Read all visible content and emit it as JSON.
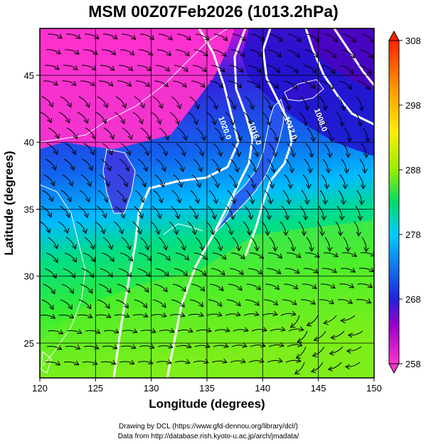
{
  "title": "MSM 00Z07Feb2026 (1013.2hPa)",
  "xlabel": "Longitude (degrees)",
  "ylabel": "Latitude  (degrees)",
  "credits": [
    "Drawing by DCL (https://www.gfd-dennou.org/library/dcl/)",
    "Data from http://database.rish.kyoto-u.ac.jp/arch/jmadata/"
  ],
  "chart_data": {
    "type": "heatmap",
    "title": "MSM 00Z07Feb2026 (1013.2hPa)",
    "xlabel": "Longitude (degrees)",
    "ylabel": "Latitude  (degrees)",
    "xlim": [
      120,
      150
    ],
    "ylim": [
      22.4,
      48.5
    ],
    "xticks": [
      120,
      125,
      130,
      135,
      140,
      145,
      150
    ],
    "yticks": [
      25,
      30,
      35,
      40,
      45
    ],
    "grid": true,
    "colorbar": {
      "min": 258,
      "max": 308,
      "ticks": [
        258,
        268,
        278,
        288,
        298,
        308
      ],
      "colors": [
        "#ff33cc",
        "#9900cc",
        "#2222dd",
        "#00ccff",
        "#00dd66",
        "#99ee00",
        "#ffee00",
        "#ff9900",
        "#ff2200"
      ]
    },
    "isobars": [
      {
        "label": "1020.0",
        "lon": 136.4,
        "lat": 41.0
      },
      {
        "label": "1016.0",
        "lon": 139.1,
        "lat": 40.6
      },
      {
        "label": "1012.0",
        "lon": 142.3,
        "lat": 41.0
      },
      {
        "label": "1008.0",
        "lon": 145.0,
        "lat": 41.6
      }
    ],
    "colors": {
      "isobar": "#ffffff",
      "streamline": "#000000",
      "coast": "#ffffff",
      "grid": "#000000"
    }
  }
}
